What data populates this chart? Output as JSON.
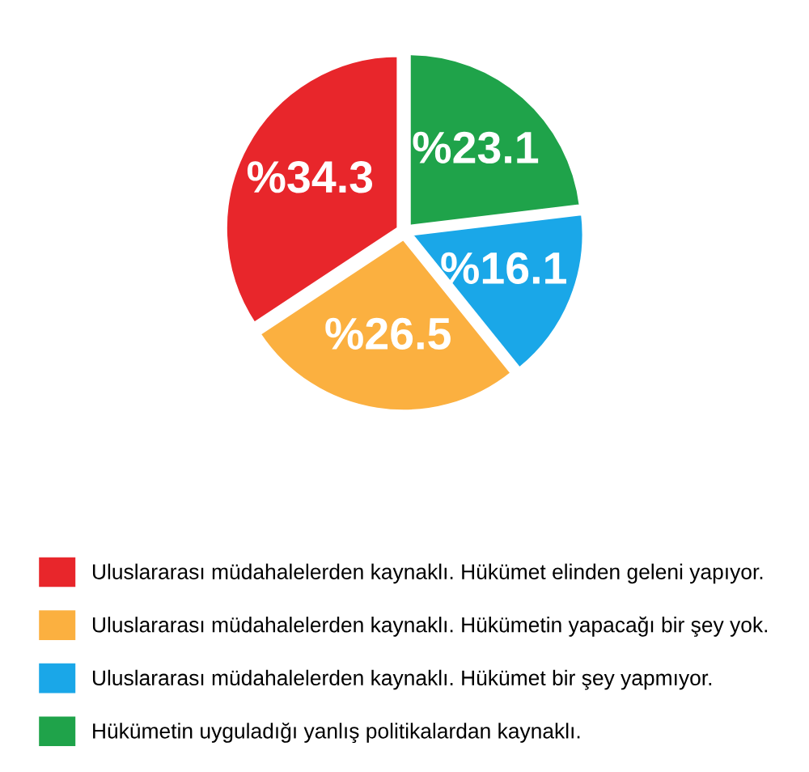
{
  "chart_data": {
    "type": "pie",
    "categories": [
      "Uluslararası müdahalelerden kaynaklı. Hükümet elinden geleni yapıyor.",
      "Uluslararası müdahalelerden kaynaklı. Hükümetin yapacağı bir şey yok.",
      "Uluslararası müdahalelerden kaynaklı. Hükümet bir şey yapmıyor.",
      "Hükümetin uyguladığı yanlış politikalardan kaynaklı."
    ],
    "values": [
      34.3,
      26.5,
      16.1,
      23.1
    ],
    "value_labels": [
      "%34.3",
      "%26.5",
      "%16.1",
      "%23.1"
    ],
    "colors": [
      "#e8262b",
      "#fbb040",
      "#1aa7e8",
      "#1fa34a"
    ],
    "legend": "bottom"
  }
}
